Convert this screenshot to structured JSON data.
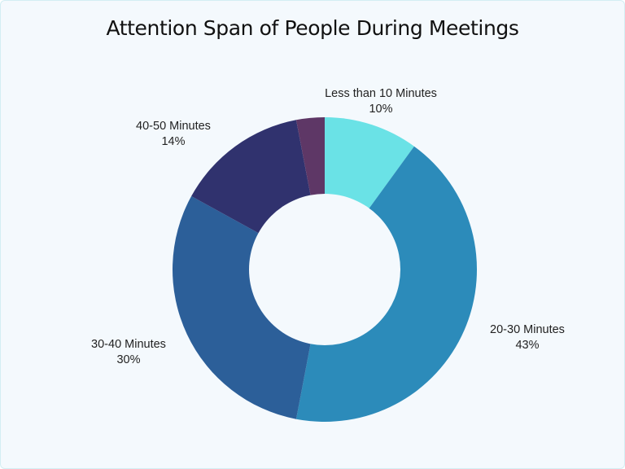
{
  "chart_data": {
    "type": "pie",
    "variant": "donut",
    "title": "Attention Span of People During Meetings",
    "categories": [
      "Less than 10 Minutes",
      "20-30 Minutes",
      "30-40 Minutes",
      "40-50 Minutes",
      "Other (unlabeled)"
    ],
    "values": [
      10,
      43,
      30,
      14,
      3
    ],
    "value_labels": [
      "10%",
      "43%",
      "30%",
      "14%",
      ""
    ],
    "colors": [
      "#6ae2e6",
      "#2c8bba",
      "#2c5f99",
      "#30326e",
      "#5e3766"
    ],
    "start_angle": "12 o'clock",
    "direction": "clockwise",
    "legend": "none (direct labels)",
    "xlabel": "",
    "ylabel": ""
  },
  "title": "Attention Span of People During Meetings",
  "labels": [
    {
      "name": "Less than 10 Minutes",
      "pct": "10%"
    },
    {
      "name": "20-30 Minutes",
      "pct": "43%"
    },
    {
      "name": "30-40 Minutes",
      "pct": "30%"
    },
    {
      "name": "40-50 Minutes",
      "pct": "14%"
    }
  ]
}
